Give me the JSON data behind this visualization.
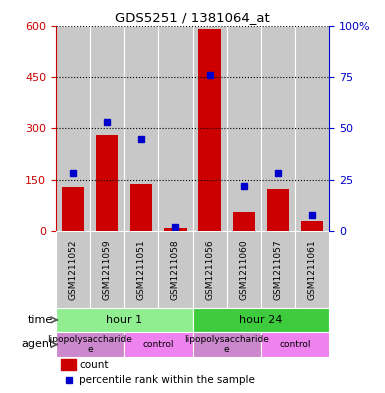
{
  "title": "GDS5251 / 1381064_at",
  "samples": [
    "GSM1211052",
    "GSM1211059",
    "GSM1211051",
    "GSM1211058",
    "GSM1211056",
    "GSM1211060",
    "GSM1211057",
    "GSM1211061"
  ],
  "counts": [
    130,
    280,
    138,
    8,
    590,
    55,
    122,
    30
  ],
  "percentiles": [
    28,
    53,
    45,
    2,
    76,
    22,
    28,
    8
  ],
  "y_max_count": 600,
  "y_max_pct": 100,
  "yticks_count": [
    0,
    150,
    300,
    450,
    600
  ],
  "yticks_pct": [
    0,
    25,
    50,
    75,
    100
  ],
  "time_groups": [
    {
      "label": "hour 1",
      "start": 0,
      "end": 4,
      "color": "#90EE90"
    },
    {
      "label": "hour 24",
      "start": 4,
      "end": 8,
      "color": "#3ECC3E"
    }
  ],
  "agent_groups": [
    {
      "label": "lipopolysaccharide\ne",
      "start": 0,
      "end": 2,
      "color": "#CC88CC"
    },
    {
      "label": "control",
      "start": 2,
      "end": 4,
      "color": "#EE82EE"
    },
    {
      "label": "lipopolysaccharide\ne",
      "start": 4,
      "end": 6,
      "color": "#CC88CC"
    },
    {
      "label": "control",
      "start": 6,
      "end": 8,
      "color": "#EE82EE"
    }
  ],
  "bar_color": "#CC0000",
  "dot_color": "#0000CC",
  "bg_color": "#C8C8C8",
  "legend_count_color": "#CC0000",
  "legend_pct_color": "#0000CC",
  "left_axis_color": "#CC0000",
  "right_axis_color": "#0000CC"
}
